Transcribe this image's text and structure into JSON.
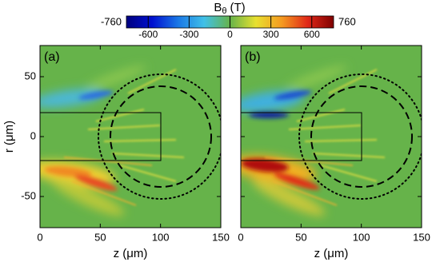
{
  "chart_data": [
    {
      "type": "heatmap",
      "panel_label": "(a)",
      "xlabel": "z (μm)",
      "ylabel": "r (μm)",
      "xlim": [
        0,
        150
      ],
      "ylim": [
        -76,
        76
      ],
      "xticks": [
        0,
        50,
        100,
        150
      ],
      "yticks": [
        -50,
        0,
        50
      ]
    },
    {
      "type": "heatmap",
      "panel_label": "(b)",
      "xlabel": "z (μm)",
      "xlim": [
        0,
        150
      ],
      "ylim": [
        -76,
        76
      ],
      "xticks": [
        0,
        50,
        100,
        150
      ]
    }
  ],
  "colorbar": {
    "label": "B",
    "label_subscript": "θ",
    "label_unit": "(T)",
    "lim": [
      -760,
      760
    ],
    "ticks": [
      -600,
      -300,
      0,
      300,
      600
    ],
    "colormap": [
      "#00007f",
      "#0010d0",
      "#1a78e6",
      "#40c0e8",
      "#66b34a",
      "#e8e030",
      "#f59a20",
      "#e02818",
      "#7f0000"
    ]
  }
}
